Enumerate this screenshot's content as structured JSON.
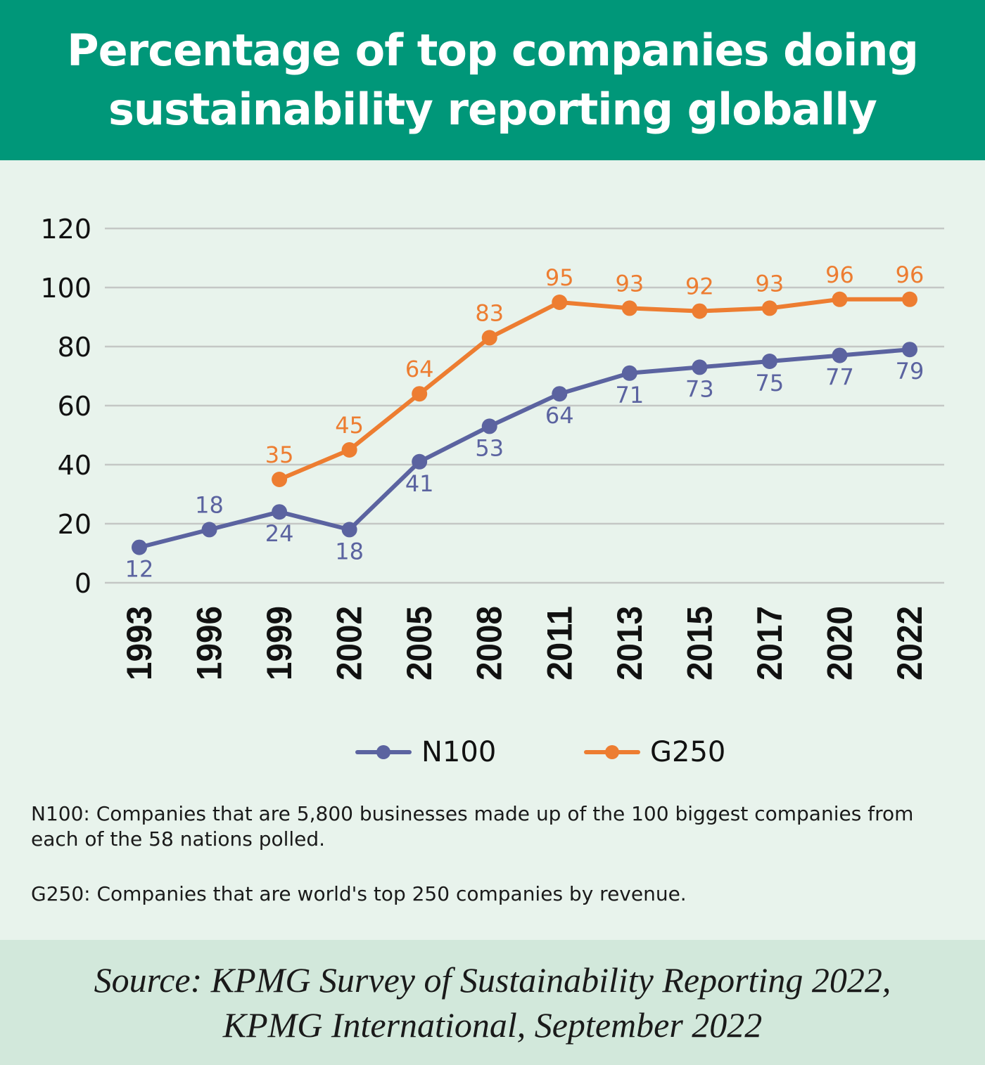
{
  "header": {
    "title_line1": "Percentage of top companies doing",
    "title_line2": "sustainability reporting globally"
  },
  "colors": {
    "header_bg": "#009779",
    "background": "#e8f3ec",
    "source_bg": "#d2e8db",
    "n100": "#5b63a0",
    "g250": "#ed7d31",
    "grid": "#c4c7c5"
  },
  "chart_data": {
    "type": "line",
    "title": "Percentage of top companies doing sustainability reporting globally",
    "xlabel": "",
    "ylabel": "",
    "x": [
      "1993",
      "1996",
      "1999",
      "2002",
      "2005",
      "2008",
      "2011",
      "2013",
      "2015",
      "2017",
      "2020",
      "2022"
    ],
    "ylim": [
      0,
      120
    ],
    "yticks": [
      0,
      20,
      40,
      60,
      80,
      100,
      120
    ],
    "grid": true,
    "legend_position": "bottom",
    "series": [
      {
        "name": "N100",
        "color": "#5b63a0",
        "values": [
          12,
          18,
          24,
          18,
          41,
          53,
          64,
          71,
          73,
          75,
          77,
          79
        ],
        "label_side": [
          "below",
          "above",
          "below",
          "below",
          "below",
          "below",
          "below",
          "below",
          "below",
          "below",
          "below",
          "below"
        ]
      },
      {
        "name": "G250",
        "color": "#ed7d31",
        "values": [
          null,
          null,
          35,
          45,
          64,
          83,
          95,
          93,
          92,
          93,
          96,
          96
        ],
        "label_side": [
          "above",
          "above",
          "above",
          "above",
          "above",
          "above",
          "above",
          "above",
          "above",
          "above",
          "above",
          "above"
        ]
      }
    ]
  },
  "legend": {
    "items": [
      {
        "label": "N100"
      },
      {
        "label": "G250"
      }
    ]
  },
  "notes": {
    "n100": "N100: Companies that are 5,800 businesses made up of the 100 biggest companies from each of the 58 nations polled.",
    "g250": "G250: Companies that are world's top 250 companies by revenue."
  },
  "source": {
    "line1": "Source: KPMG Survey of Sustainability Reporting 2022,",
    "line2": "KPMG International, September 2022"
  }
}
